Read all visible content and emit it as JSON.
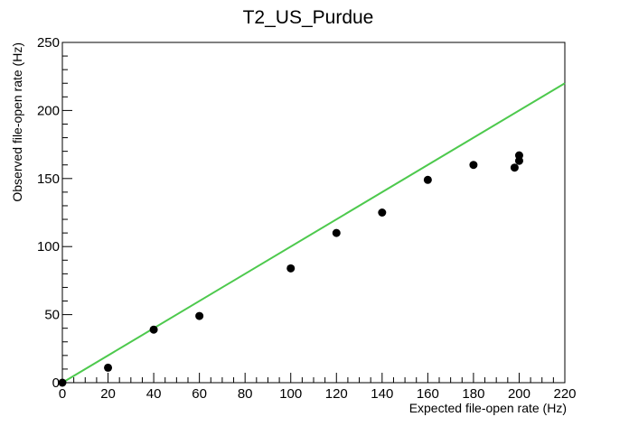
{
  "chart_data": {
    "type": "scatter",
    "title": "T2_US_Purdue",
    "xlabel": "Expected file-open rate (Hz)",
    "ylabel": "Observed file-open rate (Hz)",
    "xlim": [
      0,
      220
    ],
    "ylim": [
      0,
      250
    ],
    "x_ticks": [
      0,
      20,
      40,
      60,
      80,
      100,
      120,
      140,
      160,
      180,
      200,
      220
    ],
    "y_ticks": [
      0,
      50,
      100,
      150,
      200,
      250
    ],
    "grid": false,
    "series": [
      {
        "points": [
          {
            "x": 0,
            "y": 0
          },
          {
            "x": 20,
            "y": 11
          },
          {
            "x": 40,
            "y": 39
          },
          {
            "x": 60,
            "y": 49
          },
          {
            "x": 100,
            "y": 84
          },
          {
            "x": 120,
            "y": 110
          },
          {
            "x": 140,
            "y": 125
          },
          {
            "x": 160,
            "y": 149
          },
          {
            "x": 180,
            "y": 160
          },
          {
            "x": 198,
            "y": 158
          },
          {
            "x": 200,
            "y": 163
          },
          {
            "x": 200,
            "y": 167
          }
        ],
        "color": "#000000"
      }
    ],
    "reference_line": {
      "x": [
        0,
        220
      ],
      "y": [
        0,
        220
      ],
      "color": "#4dc94d"
    }
  }
}
